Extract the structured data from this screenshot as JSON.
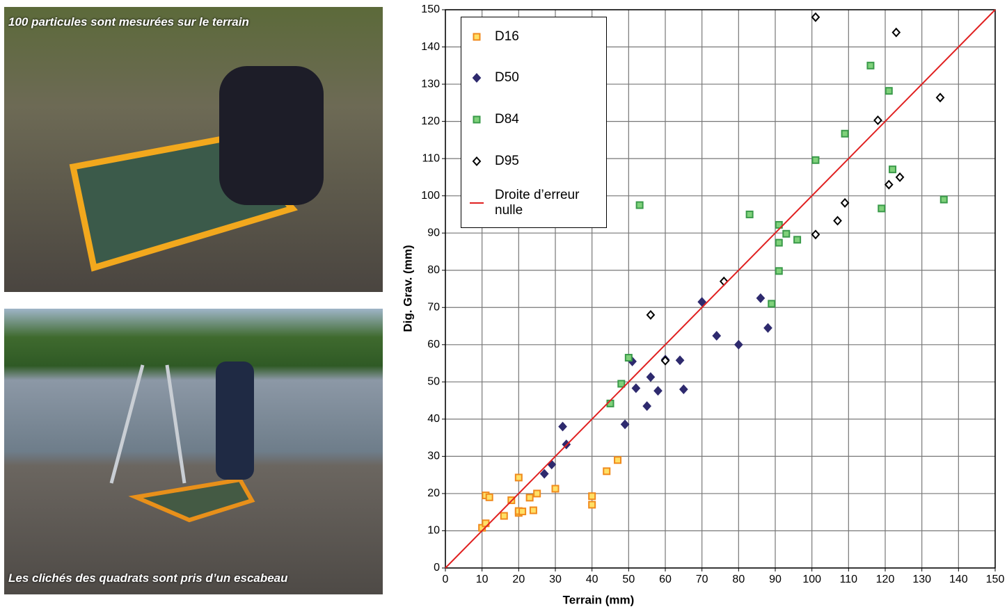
{
  "captions": [
    "100 particules sont mesurées sur le terrain",
    "Les clichés des quadrats sont pris d’un escabeau"
  ],
  "chart_data": {
    "type": "scatter",
    "xlabel": "Terrain (mm)",
    "ylabel": "Dig. Grav. (mm)",
    "xlim": [
      0,
      150
    ],
    "ylim": [
      0,
      150
    ],
    "xticks": [
      0,
      10,
      20,
      30,
      40,
      50,
      60,
      70,
      80,
      90,
      100,
      110,
      120,
      130,
      140,
      150
    ],
    "yticks": [
      0,
      10,
      20,
      30,
      40,
      50,
      60,
      70,
      80,
      90,
      100,
      110,
      120,
      130,
      140,
      150
    ],
    "grid": true,
    "legend": "upper left",
    "series": [
      {
        "name": "D16",
        "marker": "square",
        "color": "#f08a1c",
        "fill": "#ffe066",
        "x": [
          10,
          11,
          11,
          12,
          16,
          18,
          20,
          20,
          20,
          21,
          23,
          24,
          25,
          30,
          40,
          40,
          44,
          47
        ],
        "values": [
          10.8,
          12,
          19.5,
          19,
          14,
          18.2,
          24.3,
          14.8,
          15.3,
          15.2,
          18.9,
          15.5,
          20,
          21.3,
          19.3,
          17,
          26,
          29
        ]
      },
      {
        "name": "D50",
        "marker": "diamond",
        "color": "#2e2a6e",
        "fill": "#2e2a6e",
        "x": [
          27,
          29,
          32,
          33,
          49,
          51,
          52,
          55,
          56,
          58,
          60,
          64,
          65,
          70,
          74,
          80,
          86,
          88
        ],
        "values": [
          25.3,
          27.8,
          38,
          33.2,
          38.6,
          55.5,
          48.3,
          43.5,
          51.3,
          47.6,
          56,
          55.8,
          48,
          71.5,
          62.4,
          60,
          72.5,
          64.5
        ]
      },
      {
        "name": "D84",
        "marker": "square",
        "color": "#3a9a4a",
        "fill": "#7fd17a",
        "x": [
          45,
          48,
          50,
          53,
          83,
          89,
          91,
          91,
          91,
          93,
          96,
          101,
          109,
          116,
          119,
          121,
          122,
          136
        ],
        "values": [
          44.2,
          49.5,
          56.5,
          97.5,
          95,
          71,
          92.2,
          87.4,
          79.8,
          89.8,
          88.2,
          109.6,
          116.7,
          135,
          96.6,
          128.2,
          107.1,
          99
        ]
      },
      {
        "name": "D95",
        "marker": "diamond",
        "color": "#000000",
        "fill": "#ffffff",
        "x": [
          56,
          60,
          76,
          101,
          101,
          107,
          109,
          118,
          121,
          123,
          124,
          135
        ],
        "values": [
          68,
          55.7,
          77,
          148,
          89.6,
          93.3,
          98.1,
          120.3,
          103,
          143.9,
          105,
          126.4
        ]
      },
      {
        "name": "Droite d’erreur nulle",
        "marker": "line",
        "color": "#e02020",
        "x": [
          0,
          150
        ],
        "values": [
          0,
          150
        ]
      }
    ]
  }
}
